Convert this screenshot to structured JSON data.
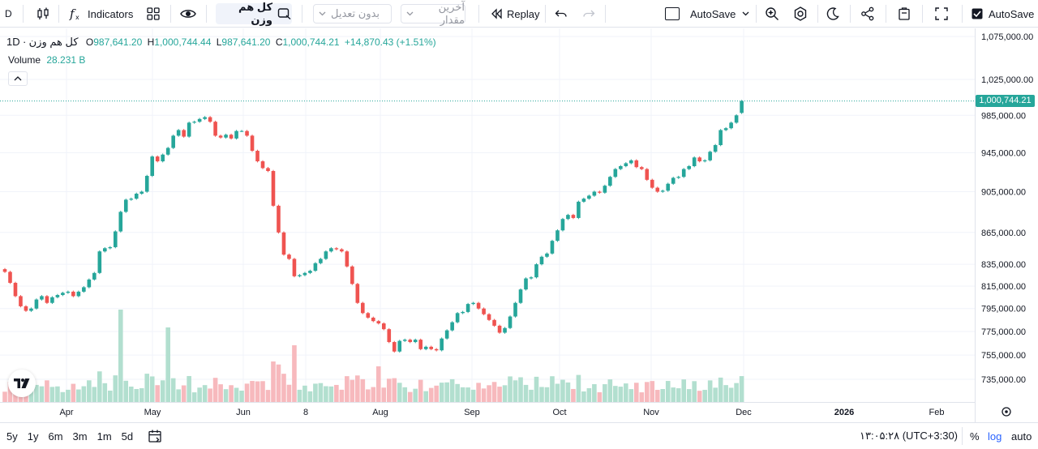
{
  "toolbar": {
    "symbol_short": "D",
    "indicators_label": "Indicators",
    "symbol_name": "کل هم وزن",
    "adjustment_label": "بدون تعدیل",
    "value_label": "آخرین مقدار",
    "replay_label": "Replay",
    "autosave_label": "AutoSave",
    "autosave_right_label": "AutoSave"
  },
  "legend": {
    "symbol": "کل هم وزن",
    "separator": "·",
    "interval": "1D",
    "open_label": "O",
    "open_value": "987,641.20",
    "high_label": "H",
    "high_value": "1,000,744.44",
    "low_label": "L",
    "low_value": "987,641.20",
    "close_label": "C",
    "close_value": "1,000,744.21",
    "change_value": "+14,870.43",
    "change_pct": "(+1.51%)",
    "volume_label": "Volume",
    "volume_value": "28.231 B"
  },
  "colors": {
    "up": "#26a69a",
    "down": "#ef5350",
    "up_volume": "#b2dfcf",
    "down_volume": "#f7b9bd",
    "grid": "#f0f3fa"
  },
  "chart_data": {
    "type": "candlestick",
    "title": "کل هم وزن · 1D",
    "price_axis_labels": [
      "1,075,000.00",
      "1,025,000.00",
      "985,000.00",
      "945,000.00",
      "905,000.00",
      "865,000.00",
      "835,000.00",
      "815,000.00",
      "795,000.00",
      "775,000.00",
      "755,000.00",
      "735,000.00"
    ],
    "last_price_label": "1,000,744.21",
    "time_axis_labels": [
      "Apr",
      "May",
      "Jun",
      "8",
      "Aug",
      "Sep",
      "Oct",
      "Nov",
      "Dec",
      "2026",
      "Feb"
    ],
    "close_series": [
      828000,
      818000,
      806000,
      797000,
      793000,
      795000,
      803000,
      806000,
      800000,
      805000,
      807000,
      809000,
      810000,
      806000,
      810000,
      814000,
      821000,
      827000,
      847000,
      850000,
      851000,
      866000,
      885000,
      897000,
      898000,
      903000,
      905000,
      921000,
      941000,
      936000,
      943000,
      950000,
      963000,
      969000,
      962000,
      977000,
      978000,
      981000,
      983000,
      978000,
      963000,
      961000,
      964000,
      960000,
      968000,
      968000,
      963000,
      947000,
      936000,
      929000,
      926000,
      891000,
      865000,
      844000,
      840000,
      824000,
      825000,
      827000,
      829000,
      836000,
      840000,
      847000,
      850000,
      849000,
      847000,
      833000,
      817000,
      800000,
      791000,
      787000,
      784000,
      782000,
      777000,
      766000,
      758000,
      767000,
      768000,
      766000,
      768000,
      760000,
      762000,
      760000,
      759000,
      769000,
      776000,
      783000,
      791000,
      792000,
      799000,
      800000,
      795000,
      790000,
      785000,
      780000,
      774000,
      778000,
      788000,
      800000,
      812000,
      822000,
      823000,
      835000,
      842000,
      845000,
      857000,
      867000,
      878000,
      882000,
      879000,
      895000,
      898000,
      901000,
      905000,
      904000,
      911000,
      920000,
      928000,
      931000,
      934000,
      937000,
      930000,
      928000,
      917000,
      909000,
      905000,
      906000,
      913000,
      919000,
      920000,
      928000,
      931000,
      940000,
      936000,
      937000,
      946000,
      953000,
      969000,
      971000,
      977000,
      985000,
      1000744
    ],
    "last_values": {
      "open": 987641.2,
      "high": 1000744.44,
      "low": 987641.2,
      "close": 1000744.21
    },
    "volume_last": "28.231 B"
  },
  "bottom": {
    "ranges": [
      "5y",
      "1y",
      "6m",
      "3m",
      "1m",
      "5d"
    ],
    "time": "۱۳:۰۵:۲۸ (UTC+3:30)",
    "percent_label": "%",
    "log_label": "log",
    "auto_label": "auto"
  }
}
